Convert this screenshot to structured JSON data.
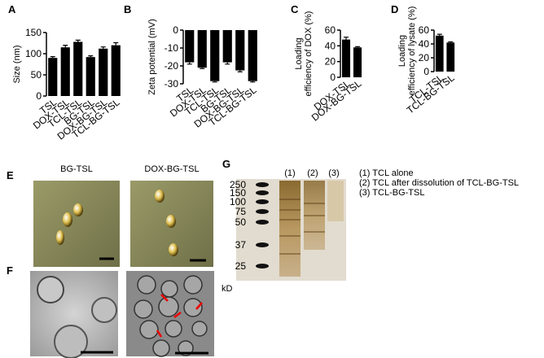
{
  "chart_data": [
    {
      "type": "bar",
      "panel": "A",
      "ylabel": "Size (nm)",
      "categories": [
        "TSL",
        "DOX-TSL",
        "TCL-TSL",
        "BG-TSL",
        "DOX-BG-TSL",
        "TCL-BG-TSL"
      ],
      "values": [
        90,
        115,
        128,
        92,
        112,
        120
      ],
      "errors": [
        3,
        5,
        4,
        3,
        4,
        6
      ],
      "color": "#000000",
      "ylim": [
        0,
        150
      ],
      "yticks": [
        0,
        50,
        100,
        150
      ]
    },
    {
      "type": "bar",
      "panel": "B",
      "ylabel": "Zeta potential (mV)",
      "categories": [
        "TSL",
        "DOX-TSL",
        "TCL-TSL",
        "BG-TSL",
        "DOX-BG-TSL",
        "TCL-BG-TSL"
      ],
      "values": [
        -18,
        -21,
        -28.5,
        -18,
        -22.5,
        -28.5
      ],
      "errors": [
        1,
        0.5,
        0.5,
        1,
        0.8,
        0.5
      ],
      "color": "#000000",
      "ylim": [
        -30,
        0
      ],
      "yticks": [
        0,
        -10,
        -20,
        -30
      ]
    },
    {
      "type": "bar",
      "panel": "C",
      "ylabel": [
        "Loading",
        "efficiency of DOX (%)"
      ],
      "categories": [
        "DOX-TSL",
        "DOX-BG-TSL"
      ],
      "values": [
        48,
        38
      ],
      "errors": [
        3,
        1
      ],
      "color": "#000000",
      "ylim": [
        0,
        60
      ],
      "yticks": [
        0,
        20,
        40,
        60
      ]
    },
    {
      "type": "bar",
      "panel": "D",
      "ylabel": [
        "Loading",
        "efficiency of lysate (%)"
      ],
      "categories": [
        "TCL-TSL",
        "TCL-BG-TSL"
      ],
      "values": [
        52,
        42
      ],
      "errors": [
        2,
        1
      ],
      "color": "#000000",
      "ylim": [
        0,
        60
      ],
      "yticks": [
        0,
        20,
        40,
        60
      ]
    }
  ],
  "images": {
    "E": {
      "panel": "E",
      "labels": [
        "BG-TSL",
        "DOX-BG-TSL"
      ]
    },
    "F": {
      "panel": "F"
    },
    "G": {
      "panel": "G",
      "markers": [
        250,
        150,
        100,
        75,
        50,
        37,
        25
      ],
      "unit": "kD",
      "lanes": [
        "(1)",
        "(2)",
        "(3)"
      ],
      "legend": [
        "(1) TCL alone",
        "(2) TCL after dissolution of TCL-BG-TSL",
        "(3) TCL-BG-TSL"
      ]
    }
  }
}
